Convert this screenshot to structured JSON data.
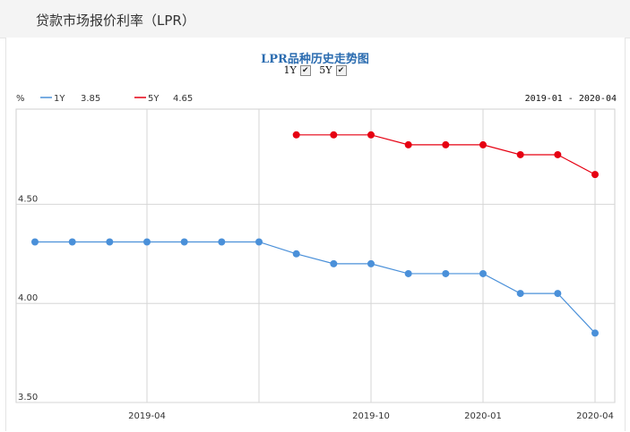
{
  "header": {
    "title": "贷款市场报价利率（LPR）"
  },
  "chart_data": {
    "type": "line",
    "title": "LPR品种历史走势图",
    "toggles": [
      {
        "label": "1Y",
        "checked": true
      },
      {
        "label": "5Y",
        "checked": true
      }
    ],
    "ylabel": "%",
    "ylim": [
      3.5,
      4.98
    ],
    "yticks": [
      "4.50",
      "4.00",
      "3.50"
    ],
    "xticks": [
      "2019-04",
      "2019-10",
      "2020-01",
      "2020-04"
    ],
    "date_range": "2019-01 - 2020-04",
    "x": [
      "2019-01",
      "2019-02",
      "2019-03",
      "2019-04",
      "2019-05",
      "2019-06",
      "2019-07",
      "2019-08",
      "2019-09",
      "2019-10",
      "2019-11",
      "2019-12",
      "2020-01",
      "2020-02",
      "2020-03",
      "2020-04"
    ],
    "series": [
      {
        "name": "1Y",
        "latest": "3.85",
        "color": "#4a90d9",
        "values": [
          4.31,
          4.31,
          4.31,
          4.31,
          4.31,
          4.31,
          4.31,
          4.25,
          4.2,
          4.2,
          4.15,
          4.15,
          4.15,
          4.05,
          4.05,
          3.85
        ]
      },
      {
        "name": "5Y",
        "latest": "4.65",
        "color": "#e60012",
        "values": [
          null,
          null,
          null,
          null,
          null,
          null,
          null,
          4.85,
          4.85,
          4.85,
          4.8,
          4.8,
          4.8,
          4.75,
          4.75,
          4.65
        ]
      }
    ],
    "grid": true
  }
}
